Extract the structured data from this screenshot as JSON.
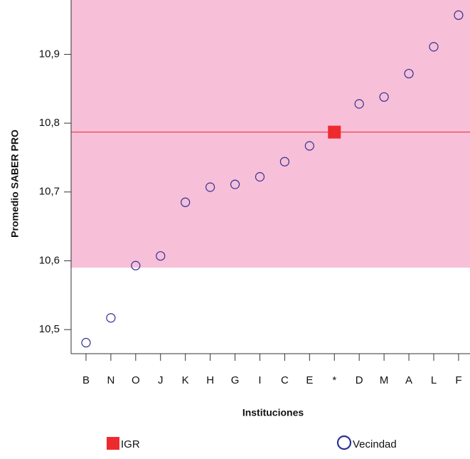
{
  "chart_data": {
    "type": "scatter",
    "y_label": "Promedio SABER PRO",
    "x_label": "Instituciones",
    "categories": [
      "B",
      "N",
      "O",
      "J",
      "K",
      "H",
      "G",
      "I",
      "C",
      "E",
      "*",
      "D",
      "M",
      "A",
      "L",
      "F"
    ],
    "series": [
      {
        "name": "IGR",
        "color": "#ee2a2f",
        "marker": "square",
        "values": [
          null,
          null,
          null,
          null,
          null,
          null,
          null,
          null,
          null,
          null,
          10.787,
          null,
          null,
          null,
          null,
          null
        ]
      },
      {
        "name": "Vecindad",
        "color": "#2e3192",
        "marker": "circle",
        "values": [
          10.481,
          10.517,
          10.593,
          10.607,
          10.685,
          10.707,
          10.711,
          10.722,
          10.744,
          10.767,
          null,
          10.828,
          10.838,
          10.872,
          10.911,
          10.957
        ]
      }
    ],
    "band": [
      10.59,
      10.979
    ],
    "band_color": "#f7bfd8",
    "ylim": [
      10.465,
      10.979
    ],
    "yticks": [
      {
        "value": 10.5,
        "label": "10,5"
      },
      {
        "value": 10.6,
        "label": "10,6"
      },
      {
        "value": 10.7,
        "label": "10,7"
      },
      {
        "value": 10.8,
        "label": "10,8"
      },
      {
        "value": 10.9,
        "label": "10,9"
      }
    ]
  }
}
